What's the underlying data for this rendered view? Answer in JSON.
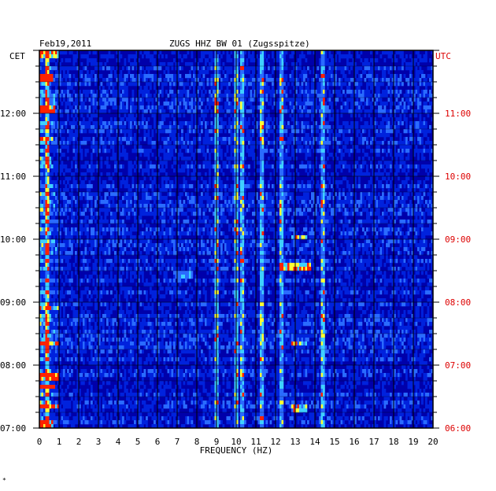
{
  "chart_data": {
    "type": "heatmap",
    "date": "Feb19,2011",
    "title": "ZUGS HHZ BW 01 (Zugsspitze)",
    "xlabel": "FREQUENCY (HZ)",
    "xlim": [
      0,
      20
    ],
    "x_ticks": [
      "0",
      "1",
      "2",
      "3",
      "4",
      "5",
      "6",
      "7",
      "8",
      "9",
      "10",
      "11",
      "12",
      "13",
      "14",
      "15",
      "16",
      "17",
      "18",
      "19",
      "20"
    ],
    "left_axis": {
      "label": "CET",
      "ticks": [
        "12:00",
        "11:00",
        "10:00",
        "09:00",
        "08:00",
        "07:00"
      ]
    },
    "right_axis": {
      "label": "UTC",
      "ticks": [
        "11:00",
        "10:00",
        "09:00",
        "08:00",
        "07:00",
        "06:00"
      ]
    },
    "colors": {
      "background": "#0000aa",
      "low": "#0022dd",
      "mid": "#2a6bff",
      "high": "#3fd0ff",
      "peak_yellow": "#ffff33",
      "peak_red": "#ff2200",
      "utc_label": "#dd0000"
    },
    "spectral_lines_hz": [
      0.4,
      9.0,
      10.0,
      10.3,
      11.3,
      12.3,
      14.4
    ],
    "events": [
      {
        "t": 12.95,
        "f": [
          0,
          1.0
        ],
        "intensity": 0.9
      },
      {
        "t": 12.55,
        "f": [
          0,
          0.7
        ],
        "intensity": 0.7
      },
      {
        "t": 12.05,
        "f": [
          0,
          0.8
        ],
        "intensity": 0.75
      },
      {
        "t": 11.6,
        "f": [
          0,
          0.7
        ],
        "intensity": 0.7
      },
      {
        "t": 11.25,
        "f": [
          0,
          0.6
        ],
        "intensity": 0.6
      },
      {
        "t": 10.02,
        "f": [
          12.8,
          13.6
        ],
        "intensity": 0.9
      },
      {
        "t": 9.55,
        "f": [
          12.2,
          13.8
        ],
        "intensity": 0.95
      },
      {
        "t": 9.45,
        "f": [
          6.8,
          7.8
        ],
        "intensity": 0.6
      },
      {
        "t": 8.9,
        "f": [
          0,
          1.0
        ],
        "intensity": 0.7
      },
      {
        "t": 8.35,
        "f": [
          0,
          1.0
        ],
        "intensity": 1.0
      },
      {
        "t": 8.35,
        "f": [
          12.8,
          13.6
        ],
        "intensity": 0.85
      },
      {
        "t": 7.8,
        "f": [
          0,
          1.0
        ],
        "intensity": 0.9
      },
      {
        "t": 7.65,
        "f": [
          0,
          0.8
        ],
        "intensity": 1.0
      },
      {
        "t": 7.35,
        "f": [
          0,
          1.0
        ],
        "intensity": 0.85
      },
      {
        "t": 7.3,
        "f": [
          12.8,
          13.6
        ],
        "intensity": 0.8
      },
      {
        "t": 7.05,
        "f": [
          0,
          0.7
        ],
        "intensity": 0.8
      }
    ]
  }
}
